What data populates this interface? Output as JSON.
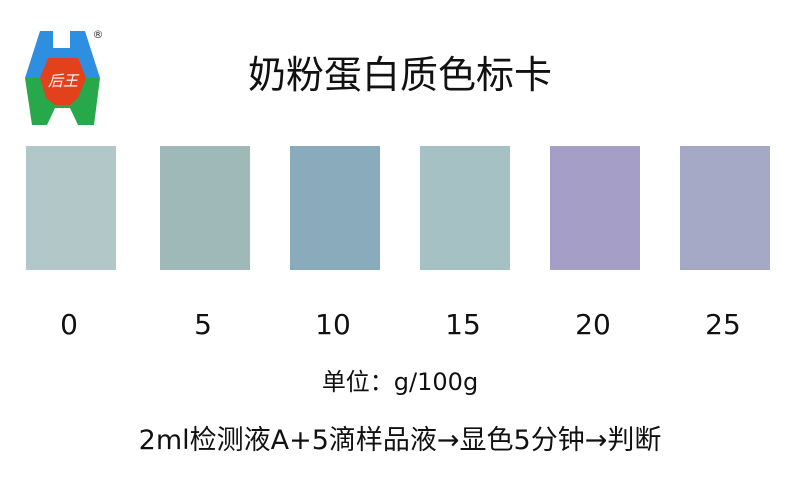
{
  "logo": {
    "text": "后王",
    "registered": "®"
  },
  "title": "奶粉蛋白质色标卡",
  "swatches": [
    {
      "label": "0",
      "color": "#b2c7c7"
    },
    {
      "label": "5",
      "color": "#9fb9b9"
    },
    {
      "label": "10",
      "color": "#8aabbc"
    },
    {
      "label": "15",
      "color": "#a6c1c3"
    },
    {
      "label": "20",
      "color": "#a59fc7"
    },
    {
      "label": "25",
      "color": "#a5a9c6"
    }
  ],
  "unit": "单位：g/100g",
  "instruction": "2ml检测液A+5滴样品液→显色5分钟→判断"
}
